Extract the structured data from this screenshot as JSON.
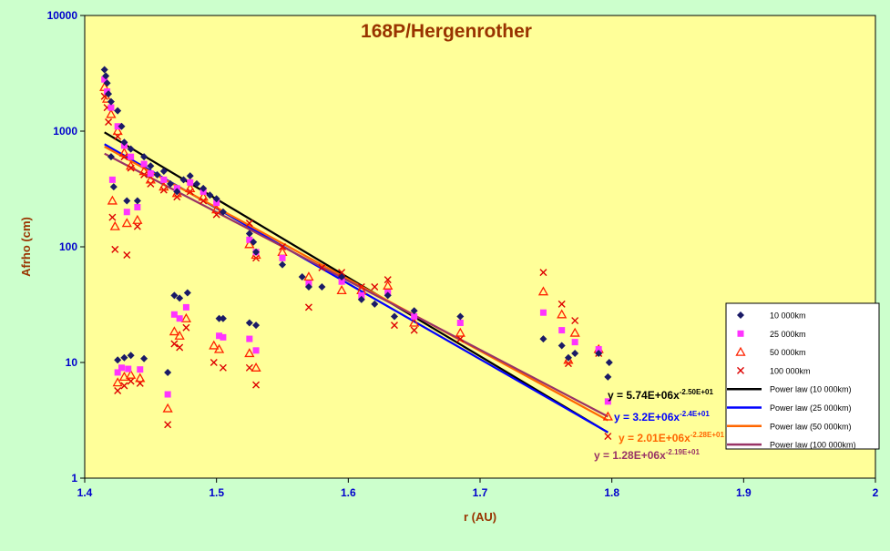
{
  "chart_data": {
    "type": "scatter",
    "title": "168P/Hergenrother",
    "xlabel": "r (AU)",
    "ylabel": "Afrho (cm)",
    "xlim": [
      1.4,
      2.0
    ],
    "ylim": [
      1,
      10000
    ],
    "y_scale": "log",
    "x_ticks": [
      "1.4",
      "1.5",
      "1.6",
      "1.7",
      "1.8",
      "1.9",
      "2"
    ],
    "y_ticks": [
      "1",
      "10",
      "100",
      "1000",
      "10000"
    ],
    "grid": false,
    "legend_position": "right",
    "colors": {
      "plot_bg": "#ffff99",
      "page_bg": "#ccffcc",
      "axis_text": "#0000cc",
      "axis_title": "#993300",
      "title": "#993300"
    },
    "series": [
      {
        "name": "10 000km",
        "marker": "diamond",
        "color": "#1a1a66",
        "points": [
          [
            1.415,
            3400
          ],
          [
            1.416,
            3000
          ],
          [
            1.417,
            2600
          ],
          [
            1.418,
            2100
          ],
          [
            1.42,
            1800
          ],
          [
            1.42,
            600
          ],
          [
            1.422,
            330
          ],
          [
            1.425,
            1500
          ],
          [
            1.428,
            1100
          ],
          [
            1.43,
            800
          ],
          [
            1.432,
            250
          ],
          [
            1.435,
            700
          ],
          [
            1.44,
            250
          ],
          [
            1.445,
            600
          ],
          [
            1.45,
            500
          ],
          [
            1.455,
            420
          ],
          [
            1.46,
            450
          ],
          [
            1.465,
            350
          ],
          [
            1.47,
            300
          ],
          [
            1.475,
            380
          ],
          [
            1.48,
            410
          ],
          [
            1.485,
            350
          ],
          [
            1.49,
            320
          ],
          [
            1.495,
            280
          ],
          [
            1.5,
            260
          ],
          [
            1.505,
            200
          ],
          [
            1.525,
            130
          ],
          [
            1.528,
            110
          ],
          [
            1.53,
            90
          ],
          [
            1.55,
            70
          ],
          [
            1.565,
            55
          ],
          [
            1.57,
            45
          ],
          [
            1.58,
            45
          ],
          [
            1.595,
            55
          ],
          [
            1.61,
            35
          ],
          [
            1.62,
            32
          ],
          [
            1.63,
            38
          ],
          [
            1.635,
            25
          ],
          [
            1.65,
            28
          ],
          [
            1.685,
            25
          ],
          [
            1.425,
            10.5
          ],
          [
            1.43,
            11
          ],
          [
            1.435,
            11.5
          ],
          [
            1.445,
            10.8
          ],
          [
            1.463,
            8.2
          ],
          [
            1.468,
            38
          ],
          [
            1.472,
            36
          ],
          [
            1.478,
            40
          ],
          [
            1.502,
            24
          ],
          [
            1.505,
            24
          ],
          [
            1.525,
            22
          ],
          [
            1.53,
            21
          ],
          [
            1.748,
            16
          ],
          [
            1.762,
            14
          ],
          [
            1.767,
            11
          ],
          [
            1.772,
            12
          ],
          [
            1.797,
            7.5
          ],
          [
            1.79,
            12
          ],
          [
            1.798,
            10
          ]
        ]
      },
      {
        "name": "25 000km",
        "marker": "square",
        "color": "#ff33ff",
        "points": [
          [
            1.415,
            2800
          ],
          [
            1.417,
            2200
          ],
          [
            1.42,
            1600
          ],
          [
            1.421,
            380
          ],
          [
            1.425,
            1100
          ],
          [
            1.43,
            750
          ],
          [
            1.432,
            200
          ],
          [
            1.435,
            600
          ],
          [
            1.44,
            220
          ],
          [
            1.445,
            520
          ],
          [
            1.45,
            430
          ],
          [
            1.46,
            380
          ],
          [
            1.47,
            320
          ],
          [
            1.48,
            360
          ],
          [
            1.49,
            300
          ],
          [
            1.5,
            240
          ],
          [
            1.525,
            115
          ],
          [
            1.53,
            90
          ],
          [
            1.55,
            80
          ],
          [
            1.57,
            48
          ],
          [
            1.595,
            50
          ],
          [
            1.61,
            38
          ],
          [
            1.63,
            40
          ],
          [
            1.65,
            25
          ],
          [
            1.685,
            22
          ],
          [
            1.425,
            8.2
          ],
          [
            1.428,
            9
          ],
          [
            1.433,
            8.8
          ],
          [
            1.442,
            8.7
          ],
          [
            1.463,
            5.3
          ],
          [
            1.468,
            26
          ],
          [
            1.472,
            24
          ],
          [
            1.477,
            30
          ],
          [
            1.502,
            17
          ],
          [
            1.505,
            16.5
          ],
          [
            1.525,
            16
          ],
          [
            1.53,
            12.7
          ],
          [
            1.748,
            27
          ],
          [
            1.762,
            19
          ],
          [
            1.772,
            15
          ],
          [
            1.797,
            4.6
          ],
          [
            1.79,
            13
          ]
        ]
      },
      {
        "name": "50 000km",
        "marker": "triangle",
        "color": "#ff2200",
        "points": [
          [
            1.415,
            2400
          ],
          [
            1.417,
            1900
          ],
          [
            1.42,
            1400
          ],
          [
            1.421,
            250
          ],
          [
            1.423,
            150
          ],
          [
            1.425,
            1000
          ],
          [
            1.43,
            650
          ],
          [
            1.432,
            160
          ],
          [
            1.435,
            500
          ],
          [
            1.44,
            170
          ],
          [
            1.445,
            450
          ],
          [
            1.45,
            380
          ],
          [
            1.46,
            330
          ],
          [
            1.47,
            290
          ],
          [
            1.48,
            320
          ],
          [
            1.49,
            270
          ],
          [
            1.5,
            210
          ],
          [
            1.525,
            105
          ],
          [
            1.53,
            85
          ],
          [
            1.55,
            90
          ],
          [
            1.57,
            55
          ],
          [
            1.595,
            42
          ],
          [
            1.61,
            42
          ],
          [
            1.63,
            46
          ],
          [
            1.65,
            22
          ],
          [
            1.685,
            18
          ],
          [
            1.425,
            6.7
          ],
          [
            1.43,
            7.5
          ],
          [
            1.435,
            7.8
          ],
          [
            1.442,
            7.3
          ],
          [
            1.463,
            4
          ],
          [
            1.468,
            18.5
          ],
          [
            1.472,
            17
          ],
          [
            1.477,
            24
          ],
          [
            1.498,
            14
          ],
          [
            1.502,
            13
          ],
          [
            1.525,
            12
          ],
          [
            1.53,
            9
          ],
          [
            1.748,
            41
          ],
          [
            1.762,
            26
          ],
          [
            1.767,
            10.5
          ],
          [
            1.772,
            18
          ],
          [
            1.797,
            3.4
          ],
          [
            1.79,
            13
          ]
        ]
      },
      {
        "name": "100 000km",
        "marker": "cross",
        "color": "#dd0000",
        "points": [
          [
            1.415,
            2000
          ],
          [
            1.417,
            1600
          ],
          [
            1.418,
            1200
          ],
          [
            1.421,
            180
          ],
          [
            1.423,
            95
          ],
          [
            1.425,
            900
          ],
          [
            1.43,
            600
          ],
          [
            1.432,
            85
          ],
          [
            1.435,
            480
          ],
          [
            1.44,
            150
          ],
          [
            1.445,
            420
          ],
          [
            1.45,
            350
          ],
          [
            1.46,
            310
          ],
          [
            1.47,
            270
          ],
          [
            1.48,
            300
          ],
          [
            1.49,
            250
          ],
          [
            1.5,
            190
          ],
          [
            1.525,
            160
          ],
          [
            1.53,
            80
          ],
          [
            1.55,
            100
          ],
          [
            1.57,
            30
          ],
          [
            1.58,
            66
          ],
          [
            1.595,
            60
          ],
          [
            1.61,
            45
          ],
          [
            1.62,
            45
          ],
          [
            1.63,
            52
          ],
          [
            1.635,
            21
          ],
          [
            1.65,
            19
          ],
          [
            1.685,
            16
          ],
          [
            1.425,
            5.7
          ],
          [
            1.43,
            6.3
          ],
          [
            1.435,
            6.9
          ],
          [
            1.442,
            6.6
          ],
          [
            1.463,
            2.9
          ],
          [
            1.468,
            14.5
          ],
          [
            1.472,
            13.5
          ],
          [
            1.477,
            20
          ],
          [
            1.498,
            10
          ],
          [
            1.505,
            9
          ],
          [
            1.525,
            9
          ],
          [
            1.53,
            6.4
          ],
          [
            1.748,
            60
          ],
          [
            1.762,
            32
          ],
          [
            1.767,
            9.8
          ],
          [
            1.772,
            23
          ],
          [
            1.797,
            2.3
          ],
          [
            1.79,
            12
          ]
        ]
      }
    ],
    "fits": [
      {
        "name": "Power law (10 000km)",
        "a": 5740000,
        "b": -25.0,
        "x_range": [
          1.415,
          1.797
        ],
        "color": "#000000",
        "label_prefix": "y = 5.74E+06x",
        "label_exp": "-2.50E+01"
      },
      {
        "name": "Power law (25 000km)",
        "a": 3200000,
        "b": -24.0,
        "x_range": [
          1.415,
          1.797
        ],
        "color": "#0000ff",
        "label_prefix": "y = 3.2E+06x",
        "label_exp": "-2.4E+01"
      },
      {
        "name": "Power law (50 000km)",
        "a": 2010000,
        "b": -22.8,
        "x_range": [
          1.415,
          1.797
        ],
        "color": "#ff6600",
        "label_prefix": "y = 2.01E+06x",
        "label_exp": "-2.28E+01"
      },
      {
        "name": "Power law (100 000km)",
        "a": 1280000,
        "b": -21.9,
        "x_range": [
          1.415,
          1.797
        ],
        "color": "#993366",
        "label_prefix": "y = 1.28E+06x",
        "label_exp": "-2.19E+01"
      }
    ]
  }
}
